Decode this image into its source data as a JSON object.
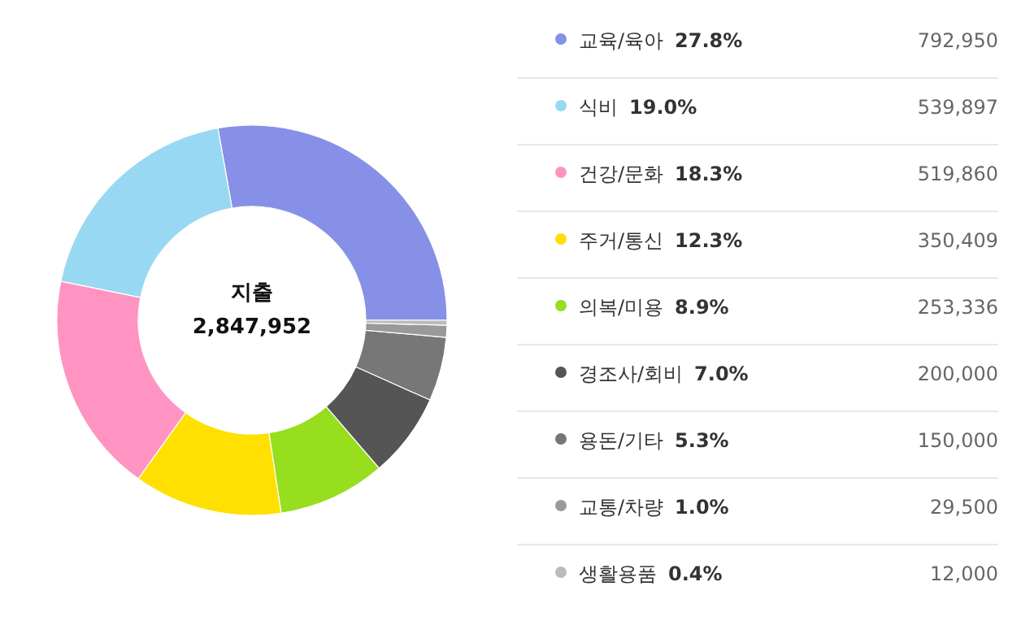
{
  "chart_data": {
    "type": "donut",
    "title": "지출",
    "subtitle": "2,847,952",
    "categories": [
      "교육/육아",
      "식비",
      "건강/문화",
      "주거/통신",
      "의복/미용",
      "경조사/회비",
      "용돈/기타",
      "교통/차량",
      "생활용품"
    ],
    "values": [
      27.8,
      19.0,
      18.3,
      12.3,
      8.9,
      7.0,
      5.3,
      1.0,
      0.4
    ],
    "colors": [
      "#8690e6",
      "#98d8f2",
      "#ff94c2",
      "#ffe000",
      "#96de1e",
      "#555555",
      "#777777",
      "#999999",
      "#bbbbbb"
    ],
    "value_labels": [
      "27.8%",
      "19.0%",
      "18.3%",
      "12.3%",
      "8.9%",
      "7.0%",
      "5.3%",
      "1.0%",
      "0.4%"
    ],
    "annotations": [
      "792,950",
      "539,897",
      "519,860",
      "350,409",
      "253,336",
      "200,000",
      "150,000",
      "29,500",
      "12,000"
    ],
    "legend": "right"
  }
}
